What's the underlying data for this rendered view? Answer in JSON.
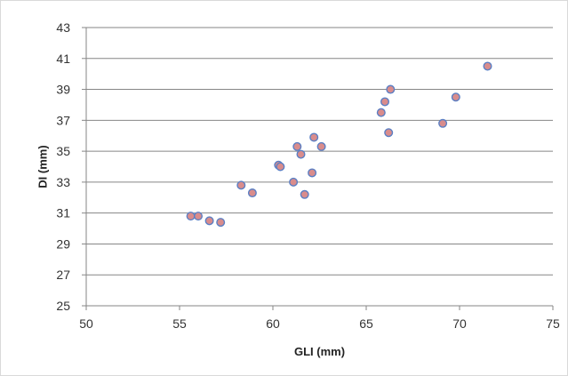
{
  "chart_data": {
    "type": "scatter",
    "title": "",
    "xlabel": "GLI (mm)",
    "ylabel": "DI (mm)",
    "xlim": [
      50,
      75
    ],
    "ylim": [
      25,
      43
    ],
    "xticks": [
      50,
      55,
      60,
      65,
      70,
      75
    ],
    "yticks": [
      25,
      27,
      29,
      31,
      33,
      35,
      37,
      39,
      41,
      43
    ],
    "grid": "horizontal",
    "legend": "none",
    "marker_fill": "#d98c8c",
    "marker_edge": "#5b7fc4",
    "series": [
      {
        "points": [
          {
            "x": 55.6,
            "y": 30.8
          },
          {
            "x": 56.0,
            "y": 30.8
          },
          {
            "x": 56.6,
            "y": 30.5
          },
          {
            "x": 57.2,
            "y": 30.4
          },
          {
            "x": 58.3,
            "y": 32.8
          },
          {
            "x": 58.9,
            "y": 32.3
          },
          {
            "x": 60.3,
            "y": 34.1
          },
          {
            "x": 60.4,
            "y": 34.0
          },
          {
            "x": 61.1,
            "y": 33.0
          },
          {
            "x": 61.3,
            "y": 35.3
          },
          {
            "x": 61.5,
            "y": 34.8
          },
          {
            "x": 61.7,
            "y": 32.2
          },
          {
            "x": 62.1,
            "y": 33.6
          },
          {
            "x": 62.2,
            "y": 35.9
          },
          {
            "x": 62.6,
            "y": 35.3
          },
          {
            "x": 65.8,
            "y": 37.5
          },
          {
            "x": 66.0,
            "y": 38.2
          },
          {
            "x": 66.2,
            "y": 36.2
          },
          {
            "x": 66.3,
            "y": 39.0
          },
          {
            "x": 69.1,
            "y": 36.8
          },
          {
            "x": 69.8,
            "y": 38.5
          },
          {
            "x": 71.5,
            "y": 40.5
          }
        ]
      }
    ]
  }
}
